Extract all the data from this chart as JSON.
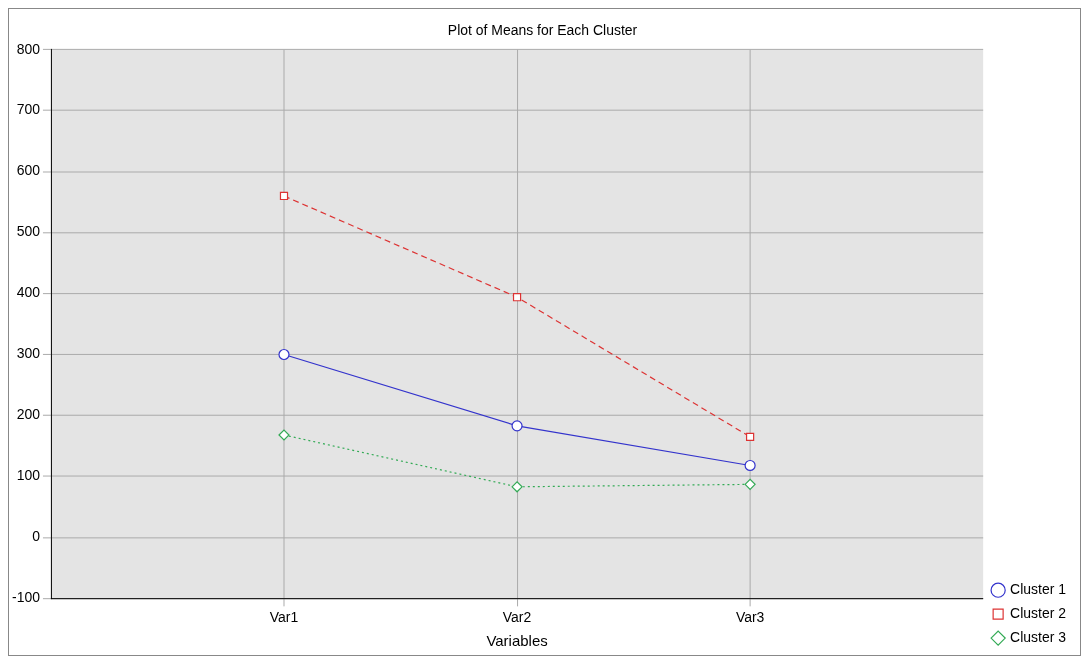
{
  "chart_data": {
    "type": "line",
    "title": "Plot of Means for Each Cluster",
    "xlabel": "Variables",
    "categories": [
      "Var1",
      "Var2",
      "Var3"
    ],
    "series": [
      {
        "name": "Cluster 1",
        "color": "#3333cc",
        "values": [
          300,
          183,
          118
        ],
        "marker": "circle",
        "line_style": "solid"
      },
      {
        "name": "Cluster 2",
        "color": "#dd3333",
        "values": [
          560,
          394,
          165
        ],
        "marker": "square",
        "line_style": "dashed"
      },
      {
        "name": "Cluster 3",
        "color": "#33aa55",
        "values": [
          168,
          83,
          87
        ],
        "marker": "diamond",
        "line_style": "dotted"
      }
    ],
    "ylim": [
      -100,
      800
    ],
    "yticks": [
      -100,
      0,
      100,
      200,
      300,
      400,
      500,
      600,
      700,
      800
    ],
    "grid": true,
    "legend": "bottom right"
  }
}
